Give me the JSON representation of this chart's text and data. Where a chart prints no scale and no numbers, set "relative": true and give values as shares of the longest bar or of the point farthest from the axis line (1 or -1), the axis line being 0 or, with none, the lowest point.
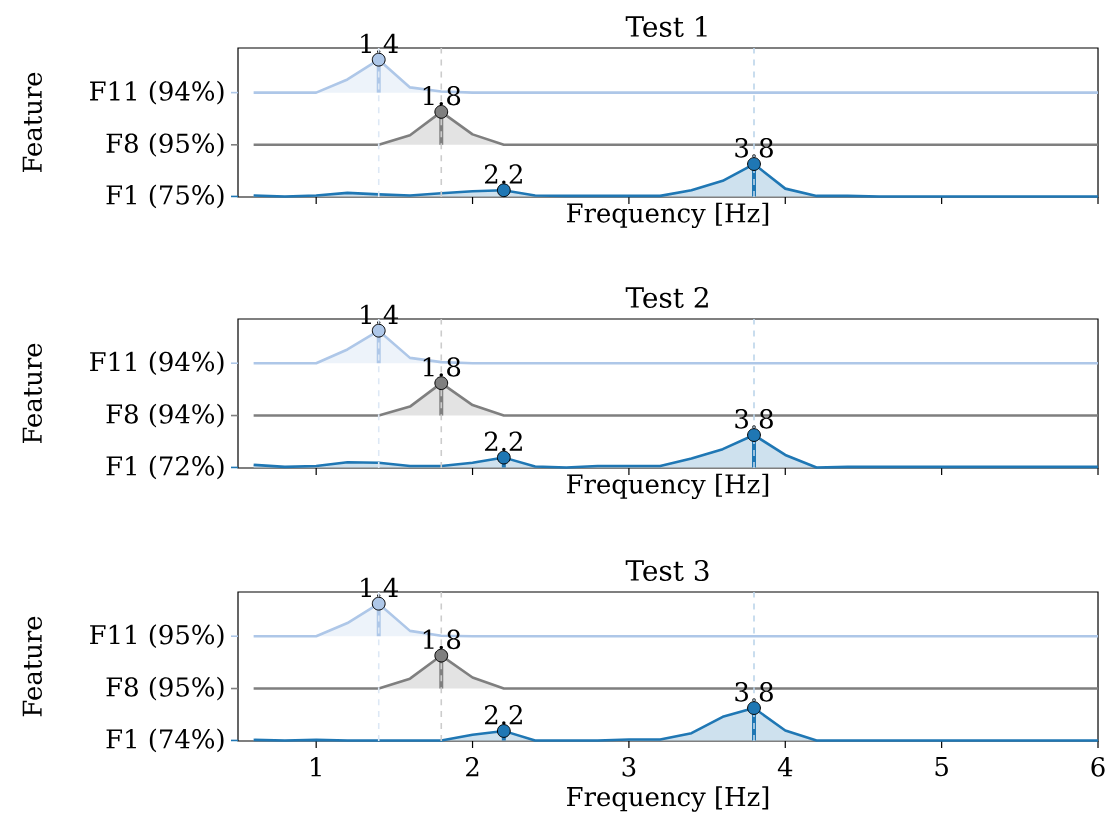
{
  "chart_data": [
    {
      "type": "line",
      "title": "Test 1",
      "xlabel": "Frequency [Hz]",
      "ylabel": "Feature",
      "tick_labels": false,
      "relative": true,
      "legend": "left",
      "x": [
        0.6,
        0.8,
        1.0,
        1.2,
        1.4,
        1.6,
        1.8,
        2.0,
        2.2,
        2.4,
        2.6,
        2.8,
        3.0,
        3.2,
        3.4,
        3.6,
        3.8,
        4.0,
        4.2,
        4.4,
        4.6,
        4.8,
        5.0,
        5.2,
        5.4,
        5.6,
        5.8,
        6.0
      ],
      "series": [
        {
          "name": "F1 (75%)",
          "color": "#1f77b4",
          "values": [
            0.011,
            0.004,
            0.011,
            0.03,
            0.019,
            0.011,
            0.027,
            0.042,
            0.049,
            0.011,
            0.008,
            0.008,
            0.008,
            0.008,
            0.049,
            0.118,
            0.24,
            0.061,
            0.008,
            0.008,
            0.004,
            0.004,
            0.004,
            0.004,
            0.004,
            0.004,
            0.004,
            0.004
          ]
        },
        {
          "name": "F8 (95%)",
          "color": "#7f7f7f",
          "values": [
            0.38,
            0.38,
            0.38,
            0.38,
            0.38,
            0.449,
            0.62,
            0.456,
            0.38,
            0.38,
            0.38,
            0.38,
            0.38,
            0.38,
            0.38,
            0.38,
            0.38,
            0.38,
            0.38,
            0.38,
            0.38,
            0.38,
            0.38,
            0.38,
            0.38,
            0.38,
            0.38,
            0.38
          ]
        },
        {
          "name": "F11 (94%)",
          "color": "#aec7e8",
          "values": [
            0.76,
            0.76,
            0.76,
            0.856,
            1,
            0.798,
            0.768,
            0.76,
            0.76,
            0.76,
            0.76,
            0.76,
            0.76,
            0.76,
            0.76,
            0.76,
            0.76,
            0.76,
            0.76,
            0.76,
            0.76,
            0.76,
            0.76,
            0.76,
            0.76,
            0.76,
            0.76,
            0.76
          ]
        }
      ],
      "xlim": [
        0.5,
        6
      ],
      "xticks": [
        1,
        2,
        3,
        4,
        5,
        6
      ],
      "ref_lines": [
        {
          "axis": "x",
          "value": 1.4,
          "color": "#dde8f5",
          "line_style": "dashed"
        },
        {
          "axis": "x",
          "value": 1.8,
          "color": "#cccccc",
          "line_style": "dashed"
        },
        {
          "axis": "x",
          "value": 3.8,
          "color": "#bcd5ea",
          "line_style": "dashed"
        }
      ],
      "annotations": [
        {
          "text": "1.4",
          "x": 1.4,
          "y": 1
        },
        {
          "text": "1.8",
          "x": 1.8,
          "y": 0.62
        },
        {
          "text": "2.2",
          "x": 2.2,
          "y": 0.049
        },
        {
          "text": "3.8",
          "x": 3.8,
          "y": 0.24
        }
      ]
    },
    {
      "type": "line",
      "title": "Test 2",
      "xlabel": "Frequency [Hz]",
      "ylabel": "Feature",
      "tick_labels": false,
      "relative": true,
      "legend": "left",
      "x": [
        0.6,
        0.8,
        1.0,
        1.2,
        1.4,
        1.6,
        1.8,
        2.0,
        2.2,
        2.4,
        2.6,
        2.8,
        3.0,
        3.2,
        3.4,
        3.6,
        3.8,
        4.0,
        4.2,
        4.4,
        4.6,
        4.8,
        5.0,
        5.2,
        5.4,
        5.6,
        5.8,
        6.0
      ],
      "series": [
        {
          "name": "F1 (72%)",
          "color": "#1f77b4",
          "values": [
            0.023,
            0.008,
            0.015,
            0.042,
            0.038,
            0.015,
            0.015,
            0.038,
            0.076,
            0.011,
            0.004,
            0.015,
            0.015,
            0.015,
            0.069,
            0.137,
            0.24,
            0.095,
            0.004,
            0.008,
            0.008,
            0.008,
            0.008,
            0.008,
            0.008,
            0.008,
            0.008,
            0.008
          ]
        },
        {
          "name": "F8 (94%)",
          "color": "#7f7f7f",
          "values": [
            0.382,
            0.382,
            0.382,
            0.382,
            0.382,
            0.447,
            0.618,
            0.458,
            0.382,
            0.382,
            0.382,
            0.382,
            0.382,
            0.382,
            0.382,
            0.382,
            0.382,
            0.382,
            0.382,
            0.382,
            0.382,
            0.382,
            0.382,
            0.382,
            0.382,
            0.382,
            0.382,
            0.382
          ]
        },
        {
          "name": "F11 (94%)",
          "color": "#aec7e8",
          "values": [
            0.763,
            0.763,
            0.763,
            0.863,
            1,
            0.802,
            0.771,
            0.763,
            0.763,
            0.763,
            0.763,
            0.763,
            0.763,
            0.763,
            0.763,
            0.763,
            0.763,
            0.763,
            0.763,
            0.763,
            0.763,
            0.763,
            0.763,
            0.763,
            0.763,
            0.763,
            0.763,
            0.763
          ]
        }
      ],
      "xlim": [
        0.5,
        6
      ],
      "xticks": [
        1,
        2,
        3,
        4,
        5,
        6
      ],
      "ref_lines": [
        {
          "axis": "x",
          "value": 1.4,
          "color": "#dde8f5",
          "line_style": "dashed"
        },
        {
          "axis": "x",
          "value": 1.8,
          "color": "#cccccc",
          "line_style": "dashed"
        },
        {
          "axis": "x",
          "value": 3.8,
          "color": "#bcd5ea",
          "line_style": "dashed"
        }
      ],
      "annotations": [
        {
          "text": "1.4",
          "x": 1.4,
          "y": 1
        },
        {
          "text": "1.8",
          "x": 1.8,
          "y": 0.618
        },
        {
          "text": "2.2",
          "x": 2.2,
          "y": 0.076
        },
        {
          "text": "3.8",
          "x": 3.8,
          "y": 0.24
        }
      ]
    },
    {
      "type": "line",
      "title": "Test 3",
      "xlabel": "Frequency [Hz]",
      "ylabel": "Feature",
      "relative": true,
      "legend": "left",
      "x": [
        0.6,
        0.8,
        1.0,
        1.2,
        1.4,
        1.6,
        1.8,
        2.0,
        2.2,
        2.4,
        2.6,
        2.8,
        3.0,
        3.2,
        3.4,
        3.6,
        3.8,
        4.0,
        4.2,
        4.4,
        4.6,
        4.8,
        5.0,
        5.2,
        5.4,
        5.6,
        5.8,
        6.0
      ],
      "series": [
        {
          "name": "F1 (74%)",
          "color": "#1f77b4",
          "values": [
            0.008,
            0.004,
            0.008,
            0.004,
            0.004,
            0.004,
            0.004,
            0.046,
            0.073,
            0.004,
            0.004,
            0.004,
            0.011,
            0.011,
            0.057,
            0.176,
            0.24,
            0.076,
            0.004,
            0.004,
            0.004,
            0.004,
            0.004,
            0.004,
            0.004,
            0.004,
            0.004,
            0.004
          ]
        },
        {
          "name": "F8 (95%)",
          "color": "#7f7f7f",
          "values": [
            0.382,
            0.382,
            0.382,
            0.382,
            0.382,
            0.454,
            0.622,
            0.462,
            0.382,
            0.382,
            0.382,
            0.382,
            0.382,
            0.382,
            0.382,
            0.382,
            0.382,
            0.382,
            0.382,
            0.382,
            0.382,
            0.382,
            0.382,
            0.382,
            0.382,
            0.382,
            0.382,
            0.382
          ]
        },
        {
          "name": "F11 (95%)",
          "color": "#aec7e8",
          "values": [
            0.763,
            0.763,
            0.763,
            0.859,
            1,
            0.802,
            0.767,
            0.763,
            0.763,
            0.763,
            0.763,
            0.763,
            0.763,
            0.763,
            0.763,
            0.763,
            0.763,
            0.763,
            0.763,
            0.763,
            0.763,
            0.763,
            0.763,
            0.763,
            0.763,
            0.763,
            0.763,
            0.763
          ]
        }
      ],
      "xlim": [
        0.5,
        6
      ],
      "xticks": [
        1,
        2,
        3,
        4,
        5,
        6
      ],
      "ref_lines": [
        {
          "axis": "x",
          "value": 1.4,
          "color": "#dde8f5",
          "line_style": "dashed"
        },
        {
          "axis": "x",
          "value": 1.8,
          "color": "#cccccc",
          "line_style": "dashed"
        },
        {
          "axis": "x",
          "value": 3.8,
          "color": "#bcd5ea",
          "line_style": "dashed"
        }
      ],
      "annotations": [
        {
          "text": "1.4",
          "x": 1.4,
          "y": 1
        },
        {
          "text": "1.8",
          "x": 1.8,
          "y": 0.622
        },
        {
          "text": "2.2",
          "x": 2.2,
          "y": 0.073
        },
        {
          "text": "3.8",
          "x": 3.8,
          "y": 0.24
        }
      ]
    }
  ]
}
